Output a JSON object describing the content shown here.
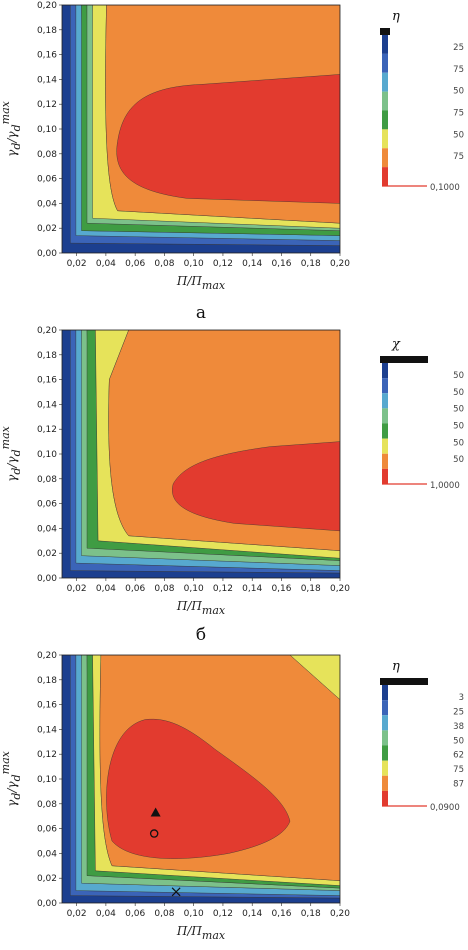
{
  "chart_data": [
    {
      "type": "contour",
      "panel_label": "а",
      "xlabel": "П/П",
      "xlabel_sub": "max",
      "ylabel": "γ",
      "ylabel_parts": [
        "d",
        "/γ",
        "d",
        "max"
      ],
      "xlim": [
        0.01,
        0.2
      ],
      "ylim": [
        0.0,
        0.2
      ],
      "xticks": [
        "0,02",
        "0,04",
        "0,06",
        "0,08",
        "0,10",
        "0,12",
        "0,14",
        "0,16",
        "0,18",
        "0,20"
      ],
      "yticks": [
        "0,00",
        "0,02",
        "0,04",
        "0,06",
        "0,08",
        "0,10",
        "0,12",
        "0,14",
        "0,16",
        "0,18",
        "0,20"
      ],
      "legend": {
        "title": "η",
        "values": [
          "25",
          "75",
          "50",
          "75",
          "50",
          "75",
          "0,1000"
        ]
      },
      "levels_colors": [
        "#1c3f8f",
        "#3b64b8",
        "#57a9cf",
        "#7cc18a",
        "#3f9c43",
        "#e6e35a",
        "#ef8a3a",
        "#e23b2f"
      ],
      "regions": [
        {
          "level": 7,
          "color": "#e23b2f",
          "peak_region": "0,07–0,20 × 0,03–0,15"
        }
      ],
      "markers": []
    },
    {
      "type": "contour",
      "panel_label": "б",
      "xlabel": "П/П",
      "xlabel_sub": "max",
      "ylabel": "γ",
      "ylabel_parts": [
        "d",
        "/γ",
        "d",
        "max"
      ],
      "xlim": [
        0.01,
        0.2
      ],
      "ylim": [
        0.0,
        0.2
      ],
      "xticks": [
        "0,02",
        "0,04",
        "0,06",
        "0,08",
        "0,10",
        "0,12",
        "0,14",
        "0,16",
        "0,18",
        "0,20"
      ],
      "yticks": [
        "0,00",
        "0,02",
        "0,04",
        "0,06",
        "0,08",
        "0,10",
        "0,12",
        "0,14",
        "0,16",
        "0,18",
        "0,20"
      ],
      "legend": {
        "title": "χ",
        "values": [
          "50",
          "50",
          "50",
          "50",
          "50",
          "50",
          "1,0000"
        ]
      },
      "levels_colors": [
        "#1c3f8f",
        "#3b64b8",
        "#57a9cf",
        "#7cc18a",
        "#3f9c43",
        "#e6e35a",
        "#ef8a3a",
        "#e23b2f"
      ],
      "regions": [
        {
          "level": 7,
          "color": "#e23b2f",
          "peak_region": "0,08–0,20 × 0,04–0,11"
        }
      ],
      "markers": []
    },
    {
      "type": "contour",
      "panel_label": "",
      "xlabel": "П/П",
      "xlabel_sub": "max",
      "ylabel": "γ",
      "ylabel_parts": [
        "d",
        "/γ",
        "d",
        "max"
      ],
      "xlim": [
        0.01,
        0.2
      ],
      "ylim": [
        0.0,
        0.2
      ],
      "xticks": [
        "0,02",
        "0,04",
        "0,06",
        "0,08",
        "0,10",
        "0,12",
        "0,14",
        "0,16",
        "0,18",
        "0,20"
      ],
      "yticks": [
        "0,00",
        "0,02",
        "0,04",
        "0,06",
        "0,08",
        "0,10",
        "0,12",
        "0,14",
        "0,16",
        "0,18",
        "0,20"
      ],
      "legend": {
        "title": "η",
        "values": [
          "3",
          "25",
          "38",
          "50",
          "62",
          "75",
          "87",
          "0,0900"
        ]
      },
      "levels_colors": [
        "#1c3f8f",
        "#3b64b8",
        "#57a9cf",
        "#7cc18a",
        "#3f9c43",
        "#e6e35a",
        "#ef8a3a",
        "#e23b2f"
      ],
      "regions": [
        {
          "level": 7,
          "color": "#e23b2f",
          "peak_region": "0,04–0,17 × 0,03–0,15"
        }
      ],
      "markers": [
        {
          "shape": "triangle",
          "x": 0.074,
          "y": 0.073
        },
        {
          "shape": "circle",
          "x": 0.073,
          "y": 0.056
        },
        {
          "shape": "cross",
          "x": 0.088,
          "y": 0.009
        }
      ]
    }
  ]
}
